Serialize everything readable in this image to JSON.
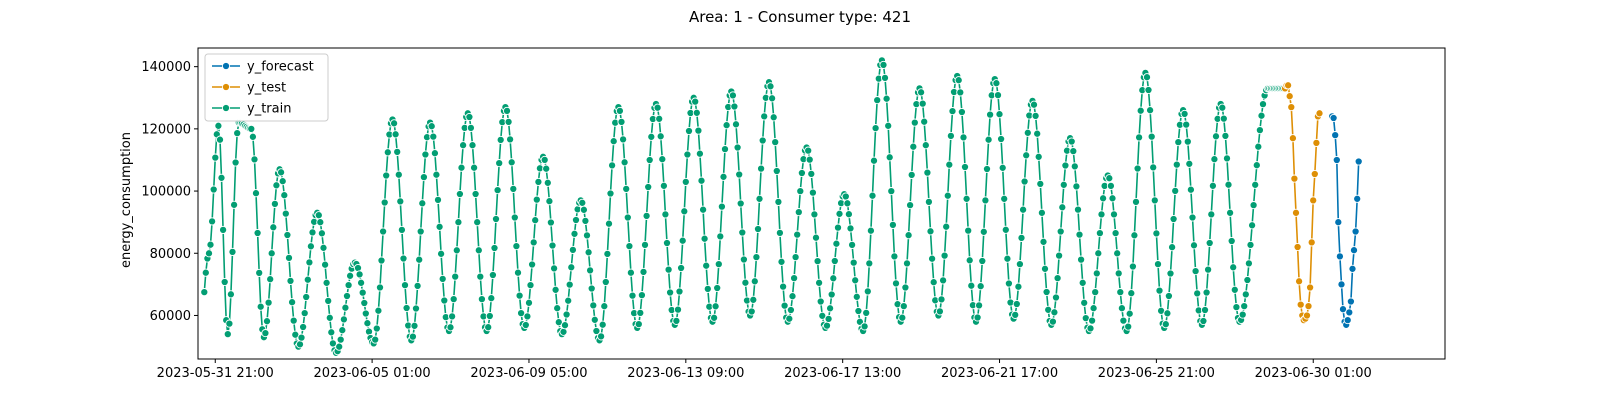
{
  "chart_data": {
    "type": "line",
    "title": "Area: 1 - Consumer type: 421",
    "xlabel": "",
    "ylabel": "energy_consumption",
    "ylim": [
      46000,
      146000
    ],
    "xlim": [
      "2023-05-31 10:00",
      "2023-07-03 13:00"
    ],
    "x_tick_labels": [
      "2023-05-31 21:00",
      "2023-06-05 01:00",
      "2023-06-09 05:00",
      "2023-06-13 09:00",
      "2023-06-17 13:00",
      "2023-06-21 17:00",
      "2023-06-25 21:00",
      "2023-06-30 01:00"
    ],
    "x_ticks": [
      "2023-05-31 21:00",
      "2023-06-05 01:00",
      "2023-06-09 05:00",
      "2023-06-13 09:00",
      "2023-06-17 13:00",
      "2023-06-21 17:00",
      "2023-06-25 21:00",
      "2023-06-30 01:00"
    ],
    "y_ticks": [
      60000,
      80000,
      100000,
      120000,
      140000
    ],
    "y_tick_labels": [
      "60000",
      "80000",
      "100000",
      "120000",
      "140000"
    ],
    "grid": false,
    "legend_placement": "top-left",
    "marker": "circle",
    "series": [
      {
        "name": "y_forecast",
        "color": "#0173b2",
        "start": "2023-06-30 13:00",
        "step_hours": 1,
        "values": [
          124000,
          123500,
          118000,
          110000,
          90000,
          79000,
          70000,
          62000,
          58000,
          57000,
          58500,
          61000,
          64500,
          75000,
          81000,
          87000,
          97500,
          109500
        ]
      },
      {
        "name": "y_test",
        "color": "#de8f05",
        "start": "2023-06-29 07:00",
        "step_hours": 1,
        "values": [
          133000,
          134000,
          134000,
          130500,
          127000,
          117000,
          104000,
          93000,
          82000,
          71000,
          63500,
          60000,
          58500,
          59000,
          60000,
          63000,
          69000,
          83500,
          97000,
          105500,
          115500,
          124000,
          125000
        ]
      },
      {
        "name": "y_train",
        "color": "#029e73",
        "start": "2023-05-31 14:00",
        "step_hours": 1,
        "daily_profiles": [
          [
            55000,
            80000,
            121000,
            54000
          ],
          [
            122000,
            120000,
            53000
          ],
          [
            107000,
            50000
          ],
          [
            93000,
            48000
          ],
          [
            77000,
            51000
          ],
          [
            123000,
            52000
          ],
          [
            122000,
            55000
          ],
          [
            125000,
            55000
          ],
          [
            127000,
            56000
          ],
          [
            111000,
            54000
          ],
          [
            97000,
            52000
          ],
          [
            127000,
            56000
          ],
          [
            128000,
            57000
          ],
          [
            130000,
            58000
          ],
          [
            132000,
            60000
          ],
          [
            135000,
            58000
          ],
          [
            114000,
            56000
          ],
          [
            99000,
            55000
          ],
          [
            142000,
            58000
          ],
          [
            133000,
            60000
          ],
          [
            137000,
            58000
          ],
          [
            136000,
            59000
          ],
          [
            129000,
            57000
          ],
          [
            117000,
            55000
          ],
          [
            105000,
            55000
          ],
          [
            138000,
            56000
          ],
          [
            126000,
            57000
          ],
          [
            128000,
            58000
          ],
          [
            133000
          ]
        ]
      }
    ]
  }
}
